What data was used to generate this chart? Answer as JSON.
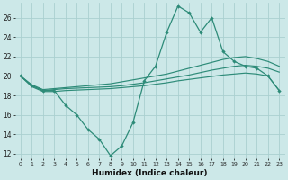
{
  "x": [
    0,
    1,
    2,
    3,
    4,
    5,
    6,
    7,
    8,
    9,
    10,
    11,
    12,
    13,
    14,
    15,
    16,
    17,
    18,
    19,
    20,
    21,
    22,
    23
  ],
  "series_main": [
    20,
    19,
    18.5,
    18.5,
    17.0,
    16.0,
    14.5,
    13.5,
    11.8,
    12.8,
    15.2,
    19.5,
    21.0,
    24.5,
    27.2,
    26.5,
    24.5,
    26.0,
    22.5,
    21.5,
    21.0,
    20.8,
    20.0,
    18.5
  ],
  "line_upper": [
    20,
    19.1,
    18.6,
    18.7,
    18.8,
    18.9,
    19.0,
    19.1,
    19.2,
    19.4,
    19.6,
    19.8,
    20.0,
    20.2,
    20.5,
    20.8,
    21.1,
    21.4,
    21.7,
    21.9,
    22.0,
    21.8,
    21.5,
    21.0
  ],
  "line_mid": [
    20,
    19.0,
    18.5,
    18.6,
    18.7,
    18.75,
    18.8,
    18.85,
    18.9,
    19.0,
    19.15,
    19.3,
    19.5,
    19.7,
    19.9,
    20.1,
    20.35,
    20.6,
    20.8,
    21.0,
    21.1,
    21.0,
    20.8,
    20.4
  ],
  "line_lower": [
    20,
    18.9,
    18.4,
    18.4,
    18.5,
    18.55,
    18.6,
    18.65,
    18.7,
    18.8,
    18.9,
    19.0,
    19.15,
    19.3,
    19.5,
    19.65,
    19.8,
    19.95,
    20.1,
    20.2,
    20.3,
    20.2,
    20.0,
    18.5
  ],
  "color": "#2d8b78",
  "bg_color": "#cce8e8",
  "grid_color": "#aad0d0",
  "xlabel": "Humidex (Indice chaleur)",
  "xlim": [
    -0.5,
    23.5
  ],
  "ylim": [
    11.5,
    27.5
  ],
  "yticks": [
    12,
    14,
    16,
    18,
    20,
    22,
    24,
    26
  ],
  "xticks": [
    0,
    1,
    2,
    3,
    4,
    5,
    6,
    7,
    8,
    9,
    10,
    11,
    12,
    13,
    14,
    15,
    16,
    17,
    18,
    19,
    20,
    21,
    22,
    23
  ]
}
